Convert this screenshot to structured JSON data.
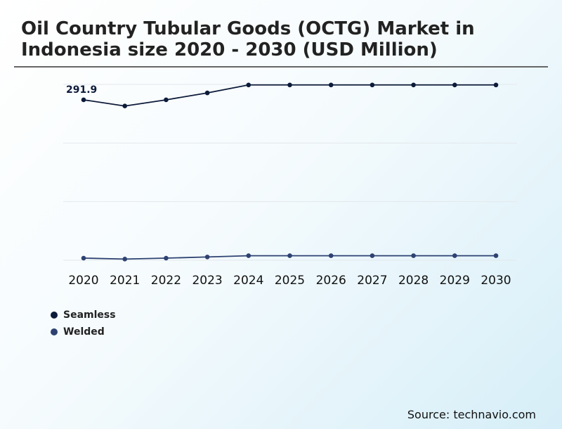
{
  "title": "Oil Country Tubular Goods (OCTG) Market in Indonesia size 2020 - 2030 (USD Million)",
  "source": "Source: technavio.com",
  "chart_data": {
    "type": "line",
    "x": [
      "2020",
      "2021",
      "2022",
      "2023",
      "2024",
      "2025",
      "2026",
      "2027",
      "2028",
      "2029",
      "2030"
    ],
    "series": [
      {
        "name": "Seamless",
        "color": "#0d1b3a",
        "values": [
          291.9,
          280.7,
          291.9,
          304.5,
          319.0,
          319.0,
          319.0,
          319.0,
          319.0,
          319.0,
          319.0
        ]
      },
      {
        "name": "Welded",
        "color": "#2e4272",
        "values": [
          3.8,
          2.1,
          3.8,
          5.9,
          8.2,
          8.2,
          8.2,
          8.2,
          8.2,
          8.2,
          8.2
        ]
      }
    ],
    "annotations": [
      {
        "series": 0,
        "index": 0,
        "label": "291.9"
      }
    ],
    "ylim": [
      0,
      320
    ],
    "grid": true,
    "legend_position": "bottom-left"
  }
}
